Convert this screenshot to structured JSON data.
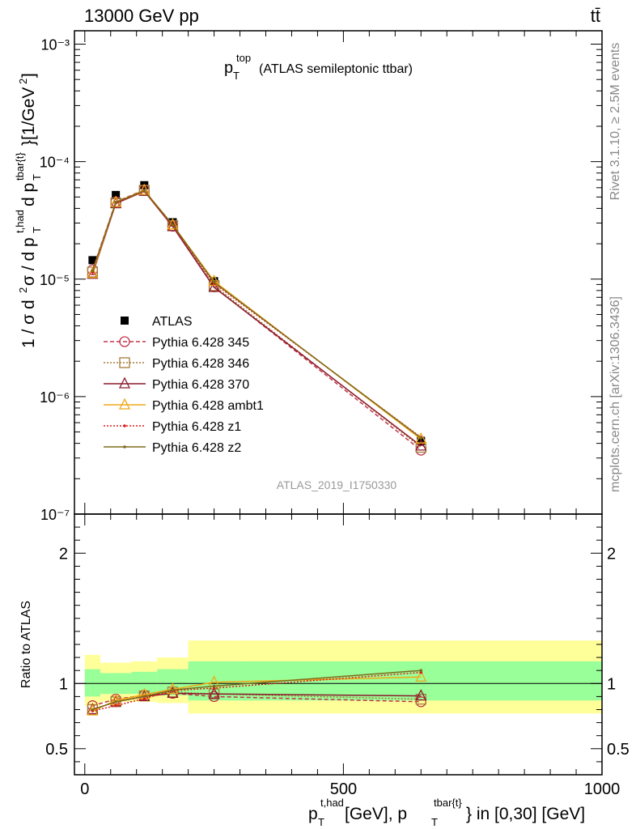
{
  "header": {
    "left": "13000 GeV pp",
    "right": "tt̄"
  },
  "side_labels": {
    "rivet": "Rivet 3.1.10, ≥ 2.5M events",
    "mcplots": "mcplots.cern.ch [arXiv:1306.3436]"
  },
  "analysis_id": "ATLAS_2019_I1750330",
  "chart_data": [
    {
      "type": "line",
      "title": "p_T^top (ATLAS semileptonic ttbar)",
      "ylabel": "1 / σ d²σ / d p_T^{t,had} d p_T^{tbar{t}} [1/GeV²]",
      "yscale": "log",
      "ylim": [
        1e-07,
        0.0013
      ],
      "xlim": [
        -20,
        1000
      ],
      "y_tick_labels": [
        "10⁻⁷",
        "10⁻⁶",
        "10⁻⁵",
        "10⁻⁴",
        "10⁻³"
      ],
      "x": [
        15,
        60,
        115,
        170,
        250,
        650
      ],
      "bin_edges": [
        0,
        30,
        90,
        140,
        200,
        300,
        1000
      ],
      "series": [
        {
          "name": "ATLAS",
          "marker": "filled-square",
          "color": "#000000",
          "values": [
            1.45e-05,
            5.2e-05,
            6.3e-05,
            3.05e-05,
            9.6e-06,
            4.2e-07
          ]
        },
        {
          "name": "Pythia 6.428 345",
          "marker": "open-circle",
          "line": "dashed",
          "color": "#c2334a",
          "values": [
            1.2e-05,
            4.55e-05,
            5.75e-05,
            2.82e-05,
            8.6e-06,
            3.5e-07
          ]
        },
        {
          "name": "Pythia 6.428 346",
          "marker": "open-square",
          "line": "dotted",
          "color": "#a67c3c",
          "values": [
            1.15e-05,
            4.45e-05,
            5.7e-05,
            2.85e-05,
            8.8e-06,
            3.7e-07
          ]
        },
        {
          "name": "Pythia 6.428 370",
          "marker": "open-triangle",
          "line": "solid",
          "color": "#8b1a2e",
          "values": [
            1.1e-05,
            4.4e-05,
            5.6e-05,
            2.8e-05,
            8.5e-06,
            3.8e-07
          ]
        },
        {
          "name": "Pythia 6.428 ambt1",
          "marker": "open-triangle",
          "line": "solid",
          "color": "#f0a818",
          "values": [
            1.12e-05,
            4.5e-05,
            5.7e-05,
            2.9e-05,
            9.6e-06,
            4.35e-07
          ]
        },
        {
          "name": "Pythia 6.428 z1",
          "marker": "dot",
          "line": "dotted",
          "color": "#e01a1a",
          "values": [
            1.15e-05,
            4.45e-05,
            5.6e-05,
            2.85e-05,
            9.2e-06,
            4.5e-07
          ]
        },
        {
          "name": "Pythia 6.428 z2",
          "marker": "dot",
          "line": "solid",
          "color": "#7d6b1a",
          "values": [
            1.18e-05,
            4.5e-05,
            5.65e-05,
            2.9e-05,
            9.4e-06,
            4.45e-07
          ]
        }
      ]
    },
    {
      "type": "line",
      "ylabel": "Ratio to ATLAS",
      "xlabel": "p_T^{t,had} [GeV], p_T^{tbar{t}} in [0,30] [GeV]",
      "ylim": [
        0.3,
        2.3
      ],
      "xlim": [
        -20,
        1000
      ],
      "y_ticks": [
        0.5,
        1,
        2
      ],
      "y_tick_labels": [
        "0.5",
        "1",
        "2"
      ],
      "x_ticks": [
        0,
        500,
        1000
      ],
      "x_tick_labels": [
        "0",
        "500",
        "1000"
      ],
      "bands": {
        "bin_edges": [
          0,
          30,
          90,
          140,
          200,
          300,
          1000
        ],
        "yellow": [
          [
            0.83,
            1.22
          ],
          [
            0.86,
            1.16
          ],
          [
            0.86,
            1.17
          ],
          [
            0.85,
            1.2
          ],
          [
            0.77,
            1.33
          ],
          [
            0.77,
            1.33
          ]
        ],
        "green": [
          [
            0.9,
            1.11
          ],
          [
            0.92,
            1.08
          ],
          [
            0.92,
            1.09
          ],
          [
            0.91,
            1.11
          ],
          [
            0.87,
            1.17
          ],
          [
            0.87,
            1.17
          ]
        ]
      },
      "x": [
        15,
        60,
        115,
        170,
        250,
        650
      ],
      "series": [
        {
          "name": "Pythia 6.428 345",
          "values": [
            0.83,
            0.88,
            0.91,
            0.925,
            0.9,
            0.86
          ]
        },
        {
          "name": "Pythia 6.428 346",
          "values": [
            0.8,
            0.86,
            0.905,
            0.935,
            0.92,
            0.88
          ]
        },
        {
          "name": "Pythia 6.428 370",
          "values": [
            0.8,
            0.86,
            0.9,
            0.925,
            0.92,
            0.905
          ]
        },
        {
          "name": "Pythia 6.428 ambt1",
          "values": [
            0.79,
            0.87,
            0.915,
            0.955,
            1.01,
            1.05
          ]
        },
        {
          "name": "Pythia 6.428 z1",
          "values": [
            0.79,
            0.83,
            0.885,
            0.945,
            0.965,
            1.085
          ]
        },
        {
          "name": "Pythia 6.428 z2",
          "values": [
            0.8,
            0.86,
            0.9,
            0.95,
            0.98,
            1.1
          ]
        }
      ]
    }
  ]
}
